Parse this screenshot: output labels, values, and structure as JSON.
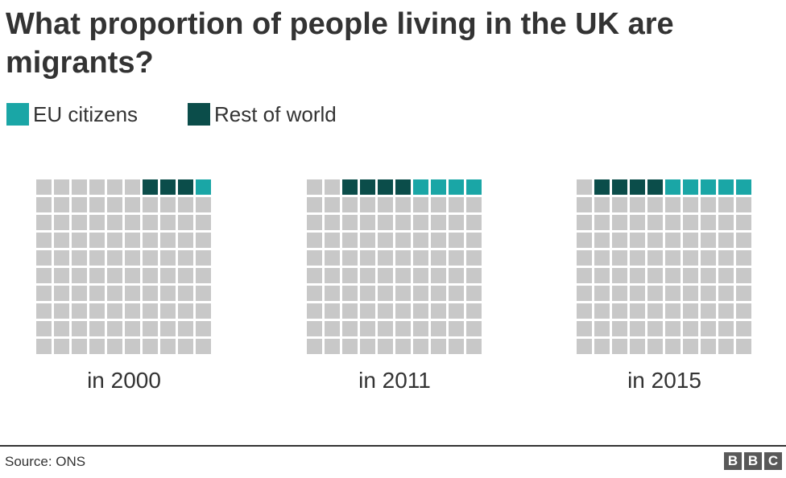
{
  "title": "What proportion of people living in the UK are migrants?",
  "legend": [
    {
      "label": "EU citizens",
      "color": "#1aa6a6"
    },
    {
      "label": "Rest of world",
      "color": "#0b4d4a"
    }
  ],
  "colors": {
    "empty": "#c8c8c8",
    "eu": "#1aa6a6",
    "rest": "#0b4d4a"
  },
  "chart_data": {
    "type": "waffle",
    "unit": "1 square = 1% of UK population",
    "cells_per_chart": 100,
    "panels": [
      {
        "label": "in 2000",
        "rest_of_world": 3,
        "eu": 1
      },
      {
        "label": "in 2011",
        "rest_of_world": 4,
        "eu": 4
      },
      {
        "label": "in 2015",
        "rest_of_world": 4,
        "eu": 5
      }
    ]
  },
  "footer": {
    "source": "Source: ONS",
    "logo": [
      "B",
      "B",
      "C"
    ]
  }
}
